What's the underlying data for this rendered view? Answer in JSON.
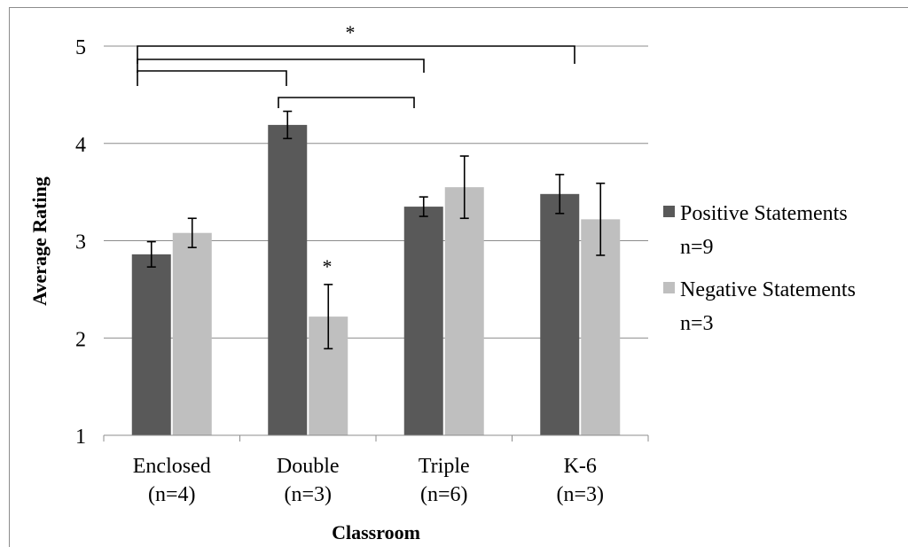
{
  "chart_data": {
    "type": "bar",
    "xlabel": "Classroom",
    "ylabel": "Average Rating",
    "ylim": [
      1,
      5
    ],
    "yticks": [
      "1",
      "2",
      "3",
      "4",
      "5"
    ],
    "grid": true,
    "legend_position": "right",
    "categories": [
      {
        "name": "Enclosed",
        "n": "(n=4)"
      },
      {
        "name": "Double",
        "n": "(n=3)"
      },
      {
        "name": "Triple",
        "n": "(n=6)"
      },
      {
        "name": "K-6",
        "n": "(n=3)"
      }
    ],
    "series": [
      {
        "name": "Positive Statements",
        "name_n": "n=9",
        "color": "#595959",
        "values": [
          2.86,
          4.19,
          3.35,
          3.48
        ],
        "errors": [
          0.13,
          0.14,
          0.1,
          0.2
        ]
      },
      {
        "name": "Negative Statements",
        "name_n": "n=3",
        "color": "#bfbfbf",
        "values": [
          3.08,
          2.22,
          3.55,
          3.22
        ],
        "errors": [
          0.15,
          0.33,
          0.32,
          0.37
        ]
      }
    ],
    "significance_marks": [
      "*",
      "*"
    ]
  }
}
